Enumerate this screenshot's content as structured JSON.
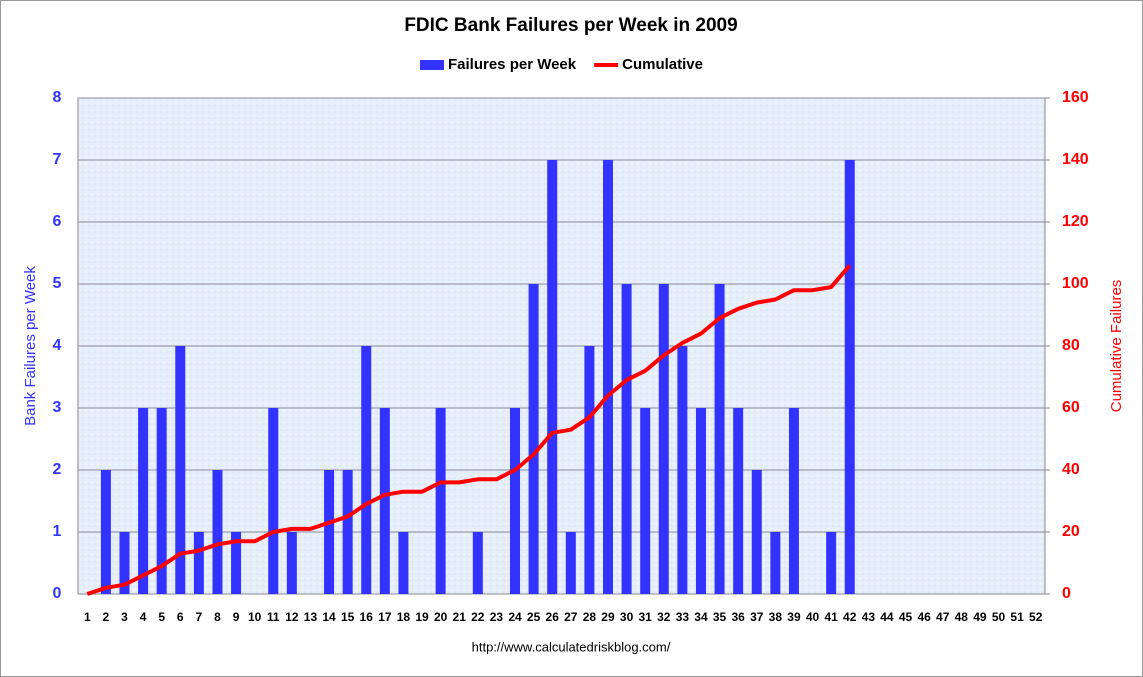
{
  "chart_data": {
    "type": "bar",
    "title": "FDIC Bank Failures per Week in 2009",
    "y_label": "Bank Failures per Week",
    "y2_label": "Cumulative Failures",
    "source": "http://www.calculatedriskblog.com/",
    "categories": [
      1,
      2,
      3,
      4,
      5,
      6,
      7,
      8,
      9,
      10,
      11,
      12,
      13,
      14,
      15,
      16,
      17,
      18,
      19,
      20,
      21,
      22,
      23,
      24,
      25,
      26,
      27,
      28,
      29,
      30,
      31,
      32,
      33,
      34,
      35,
      36,
      37,
      38,
      39,
      40,
      41,
      42,
      43,
      44,
      45,
      46,
      47,
      48,
      49,
      50,
      51,
      52
    ],
    "series": [
      {
        "name": "Failures per Week",
        "type": "bar",
        "color": "#3333ff",
        "axis": "y",
        "values": [
          0,
          2,
          1,
          3,
          3,
          4,
          1,
          2,
          1,
          0,
          3,
          1,
          0,
          2,
          2,
          4,
          3,
          1,
          0,
          3,
          0,
          1,
          0,
          3,
          5,
          7,
          1,
          4,
          7,
          5,
          3,
          5,
          4,
          3,
          5,
          3,
          2,
          1,
          3,
          0,
          1,
          7,
          null,
          null,
          null,
          null,
          null,
          null,
          null,
          null,
          null,
          null
        ]
      },
      {
        "name": "Cumulative",
        "type": "line",
        "color": "#ff0000",
        "axis": "y2",
        "values": [
          0,
          2,
          3,
          6,
          9,
          13,
          14,
          16,
          17,
          17,
          20,
          21,
          21,
          23,
          25,
          29,
          32,
          33,
          33,
          36,
          36,
          37,
          37,
          40,
          45,
          52,
          53,
          57,
          64,
          69,
          72,
          77,
          81,
          84,
          89,
          92,
          94,
          95,
          98,
          98,
          99,
          106,
          null,
          null,
          null,
          null,
          null,
          null,
          null,
          null,
          null,
          null
        ]
      }
    ],
    "ylim": [
      0,
      8
    ],
    "yticks": [
      0,
      1,
      2,
      3,
      4,
      5,
      6,
      7,
      8
    ],
    "y2lim": [
      0,
      160
    ],
    "y2ticks": [
      0,
      20,
      40,
      60,
      80,
      100,
      120,
      140,
      160
    ],
    "grid": true,
    "legend": "top"
  }
}
